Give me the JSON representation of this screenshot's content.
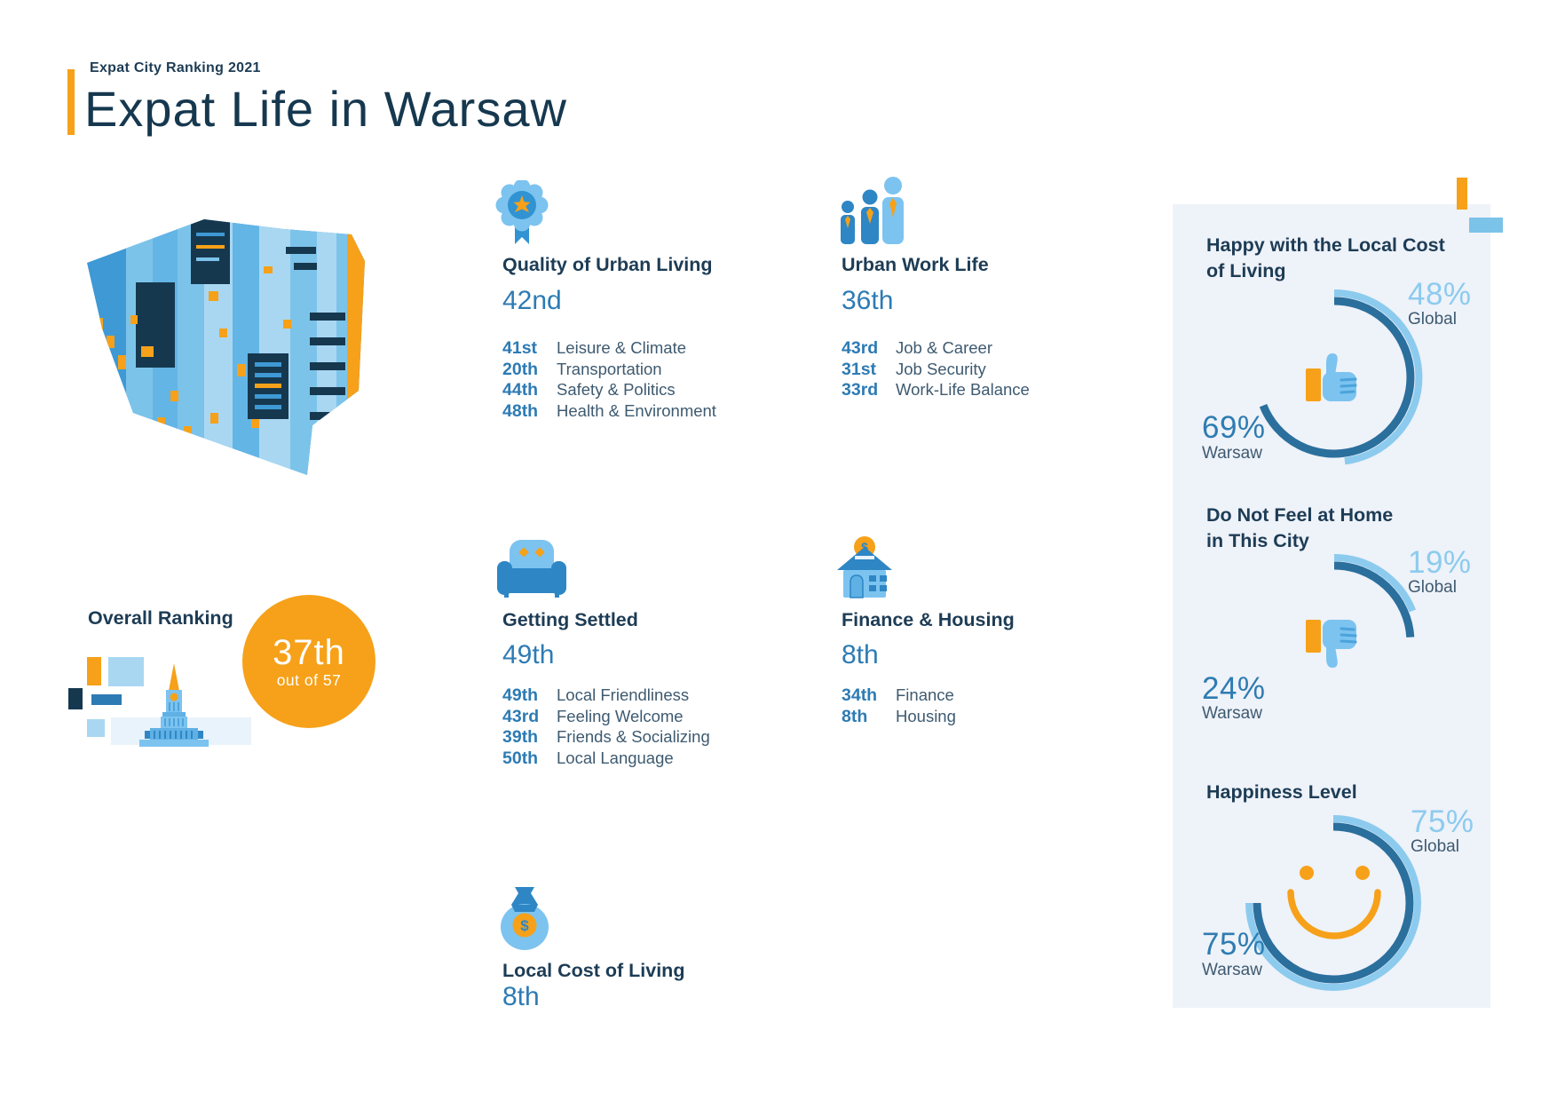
{
  "header": {
    "eyebrow": "Expat City Ranking 2021",
    "title": "Expat Life in Warsaw"
  },
  "overall": {
    "title": "Overall Ranking",
    "rank": "37th",
    "of": "out of 57"
  },
  "categories": [
    {
      "title": "Quality of Urban Living",
      "rank": "42nd",
      "icon": "badge-icon",
      "rows": [
        {
          "rank": "41st",
          "label": "Leisure & Climate"
        },
        {
          "rank": "20th",
          "label": "Transportation"
        },
        {
          "rank": "44th",
          "label": "Safety & Politics"
        },
        {
          "rank": "48th",
          "label": "Health & Environment"
        }
      ]
    },
    {
      "title": "Urban Work Life",
      "rank": "36th",
      "icon": "people-icon",
      "rows": [
        {
          "rank": "43rd",
          "label": "Job & Career"
        },
        {
          "rank": "31st",
          "label": "Job Security"
        },
        {
          "rank": "33rd",
          "label": "Work-Life Balance"
        }
      ]
    },
    {
      "title": "Getting Settled",
      "rank": "49th",
      "icon": "armchair-icon",
      "rows": [
        {
          "rank": "49th",
          "label": "Local Friendliness"
        },
        {
          "rank": "43rd",
          "label": "Feeling Welcome"
        },
        {
          "rank": "39th",
          "label": "Friends & Socializing"
        },
        {
          "rank": "50th",
          "label": "Local Language"
        }
      ]
    },
    {
      "title": "Finance & Housing",
      "rank": "8th",
      "icon": "house-icon",
      "rows": [
        {
          "rank": "34th",
          "label": "Finance"
        },
        {
          "rank": "8th",
          "label": "Housing"
        }
      ]
    },
    {
      "title": "Local Cost of Living",
      "rank": "8th",
      "icon": "money-bag-icon",
      "rows": []
    }
  ],
  "sidebar_stats": [
    {
      "title_line1": "Happy with the Local Cost",
      "title_line2": "of Living",
      "icon": "thumbs-up-icon",
      "global_pct": 48,
      "warsaw_pct": 69,
      "global_value": "48%",
      "warsaw_value": "69%",
      "global_label": "Global",
      "warsaw_label": "Warsaw"
    },
    {
      "title_line1": "Do Not Feel at Home",
      "title_line2": "in This City",
      "icon": "thumbs-down-icon",
      "global_pct": 19,
      "warsaw_pct": 24,
      "global_value": "19%",
      "warsaw_value": "24%",
      "global_label": "Global",
      "warsaw_label": "Warsaw"
    },
    {
      "title_line1": "Happiness Level",
      "title_line2": "",
      "icon": "smiley-icon",
      "global_pct": 75,
      "warsaw_pct": 75,
      "global_value": "75%",
      "warsaw_value": "75%",
      "global_label": "Global",
      "warsaw_label": "Warsaw"
    }
  ],
  "colors": {
    "orange": "#F6A119",
    "navy": "#1D3C55",
    "blue": "#2D7BB4",
    "arc_dark": "#2B6F9D",
    "arc_light": "#8CCBEE",
    "panel_bg": "#EEF2F9",
    "label": "#3E5A70"
  },
  "chart_data": [
    {
      "type": "table",
      "title": "Expat City Ranking 2021 — Expat Life in Warsaw",
      "overall": {
        "city": "Warsaw",
        "rank": 37,
        "out_of": 57
      },
      "categories": [
        {
          "category": "Quality of Urban Living",
          "rank": 42,
          "sub": [
            [
              "Leisure & Climate",
              41
            ],
            [
              "Transportation",
              20
            ],
            [
              "Safety & Politics",
              44
            ],
            [
              "Health & Environment",
              48
            ]
          ]
        },
        {
          "category": "Urban Work Life",
          "rank": 36,
          "sub": [
            [
              "Job & Career",
              43
            ],
            [
              "Job Security",
              31
            ],
            [
              "Work-Life Balance",
              33
            ]
          ]
        },
        {
          "category": "Getting Settled",
          "rank": 49,
          "sub": [
            [
              "Local Friendliness",
              49
            ],
            [
              "Feeling Welcome",
              43
            ],
            [
              "Friends & Socializing",
              39
            ],
            [
              "Local Language",
              50
            ]
          ]
        },
        {
          "category": "Finance & Housing",
          "rank": 8,
          "sub": [
            [
              "Finance",
              34
            ],
            [
              "Housing",
              8
            ]
          ]
        },
        {
          "category": "Local Cost of Living",
          "rank": 8,
          "sub": []
        }
      ]
    },
    {
      "type": "gauge",
      "title": "Happy with the Local Cost of Living",
      "series": [
        {
          "name": "Warsaw",
          "value": 69
        },
        {
          "name": "Global",
          "value": 48
        }
      ],
      "unit": "%",
      "range": [
        0,
        100
      ]
    },
    {
      "type": "gauge",
      "title": "Do Not Feel at Home in This City",
      "series": [
        {
          "name": "Warsaw",
          "value": 24
        },
        {
          "name": "Global",
          "value": 19
        }
      ],
      "unit": "%",
      "range": [
        0,
        100
      ]
    },
    {
      "type": "gauge",
      "title": "Happiness Level",
      "series": [
        {
          "name": "Warsaw",
          "value": 75
        },
        {
          "name": "Global",
          "value": 75
        }
      ],
      "unit": "%",
      "range": [
        0,
        100
      ]
    }
  ]
}
